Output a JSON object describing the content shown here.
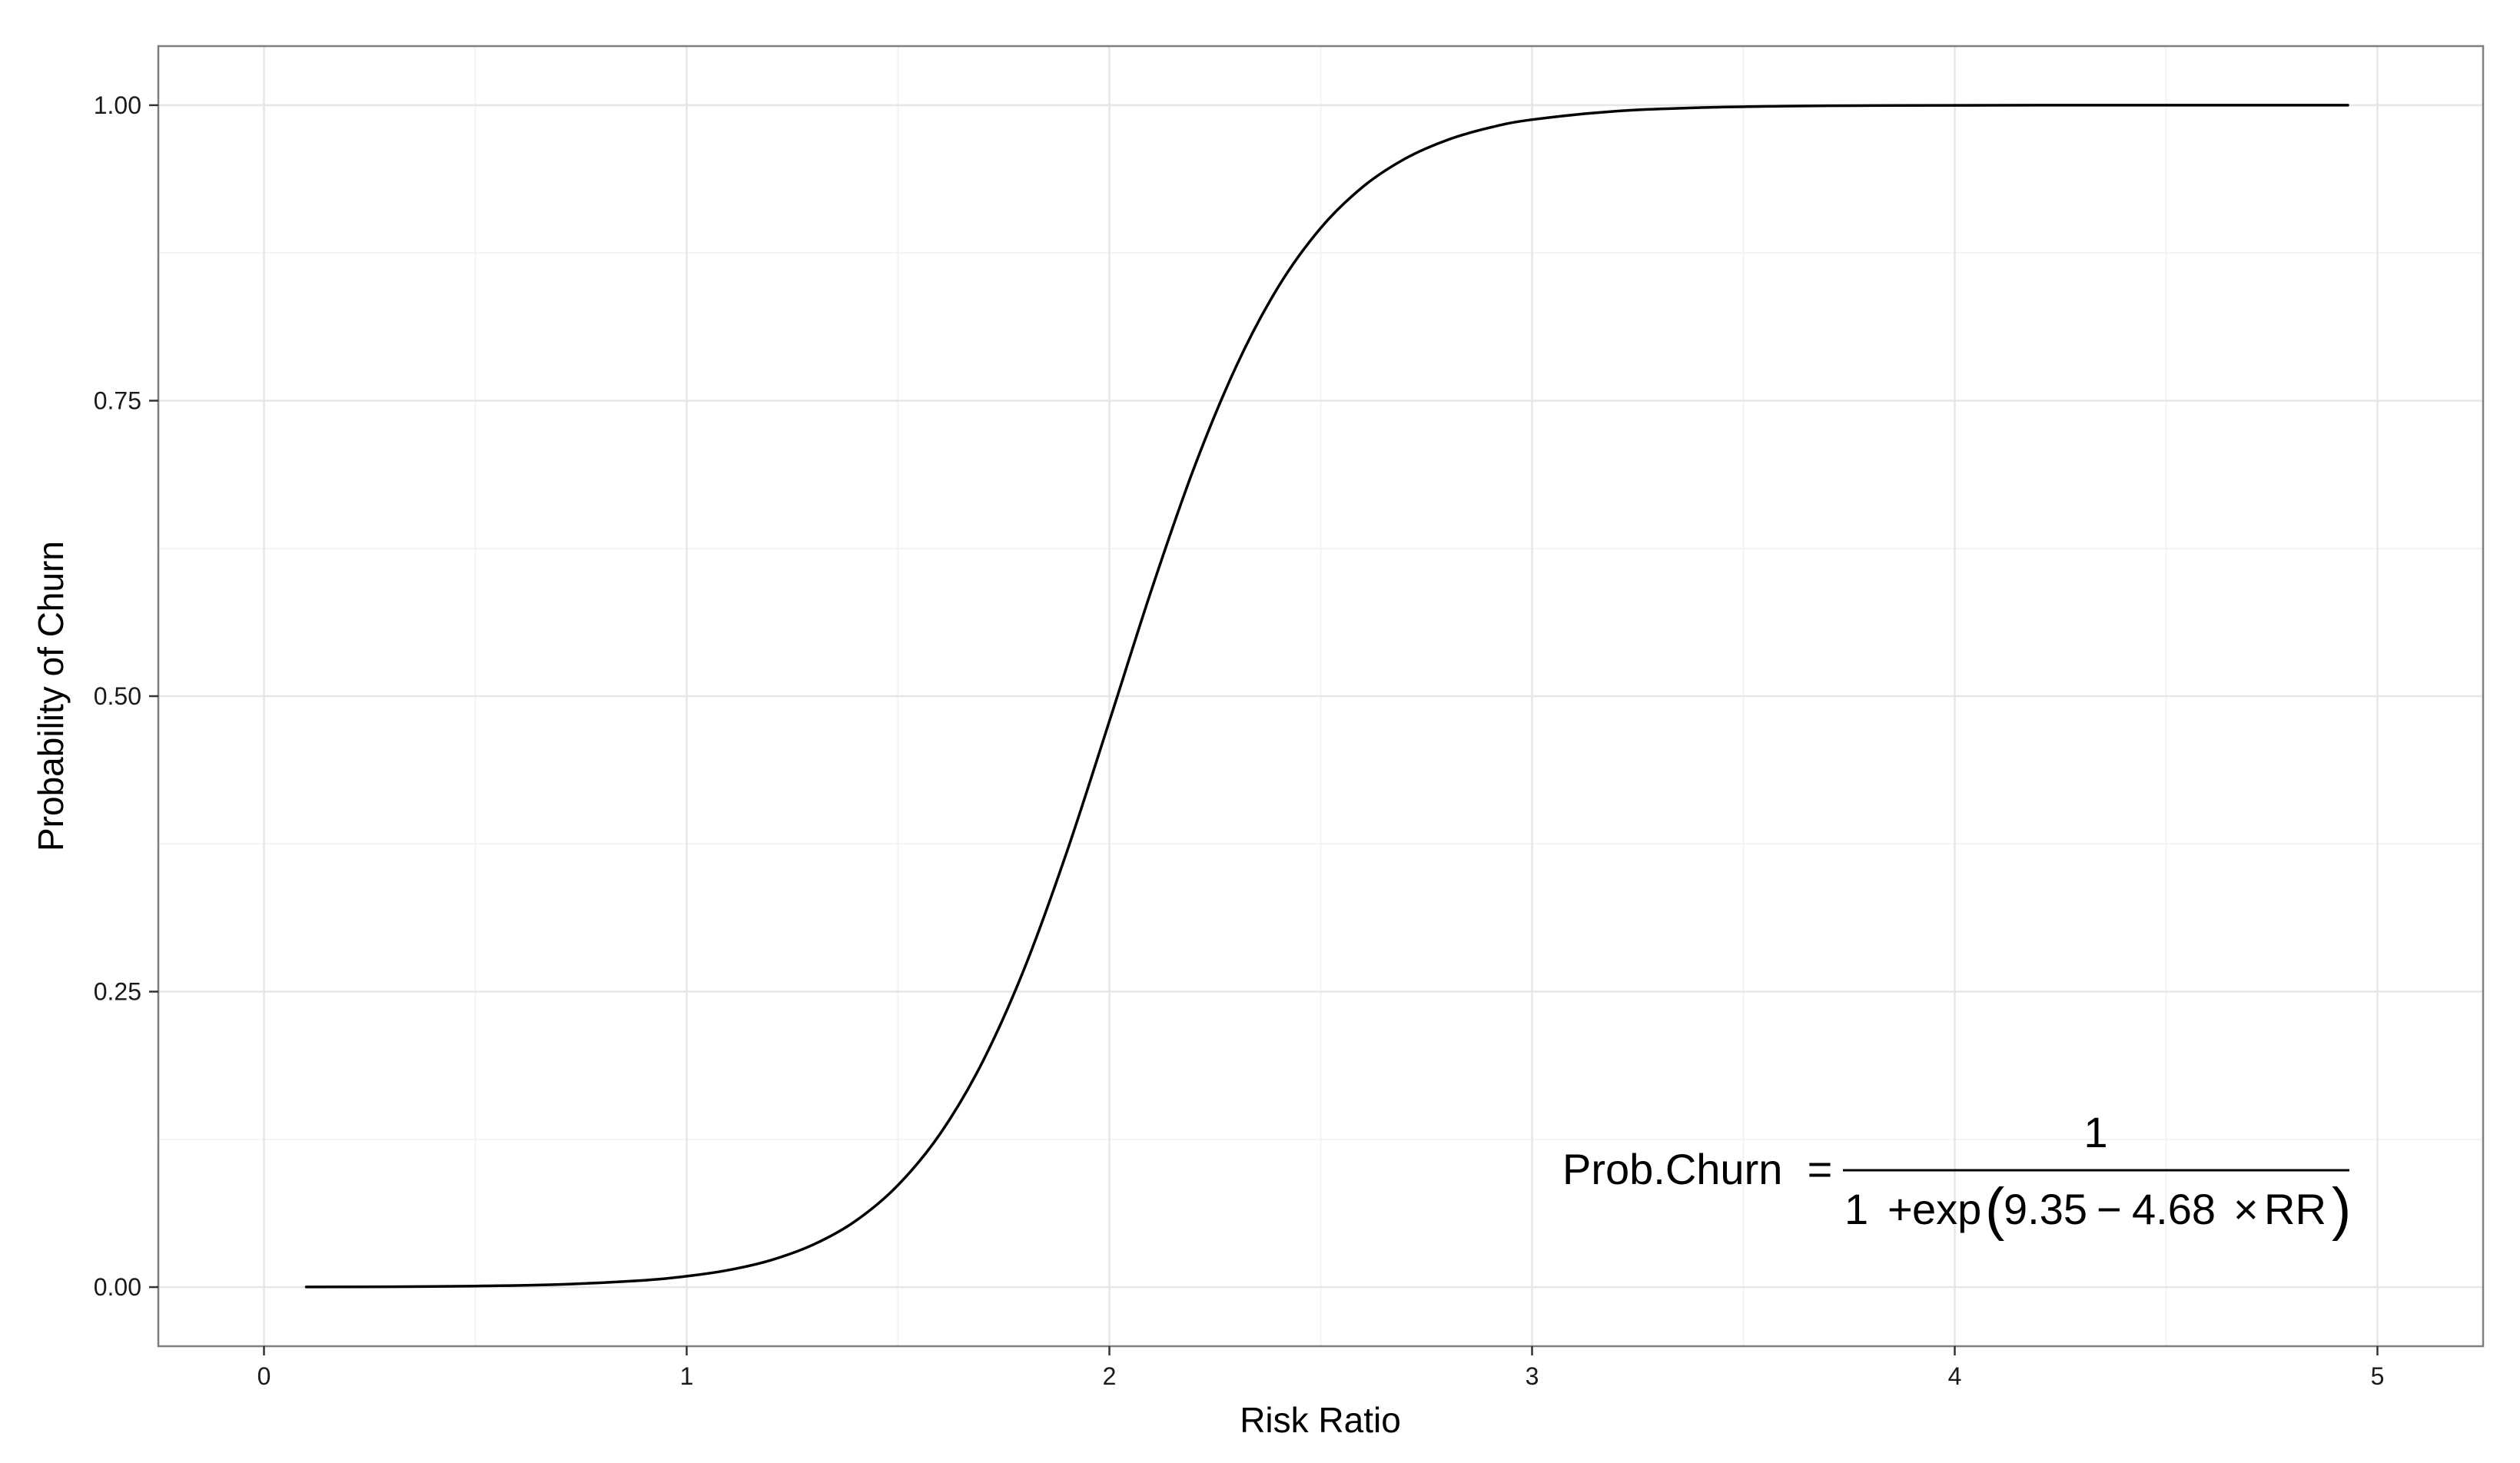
{
  "chart_data": {
    "type": "line",
    "title": "",
    "xlabel": "Risk Ratio",
    "ylabel": "Probability of Churn",
    "xlim": [
      -0.25,
      5.25
    ],
    "ylim": [
      -0.05,
      1.05
    ],
    "x_ticks": [
      0,
      1,
      2,
      3,
      4,
      5
    ],
    "x_tick_labels": [
      "0",
      "1",
      "2",
      "3",
      "4",
      "5"
    ],
    "y_ticks": [
      0,
      0.25,
      0.5,
      0.75,
      1
    ],
    "y_tick_labels": [
      "0.00",
      "0.25",
      "0.50",
      "0.75",
      "1.00"
    ],
    "grid": true,
    "legend": "none",
    "series": [
      {
        "color": "#000000",
        "x": [
          0.1,
          0.3,
          0.5,
          0.7,
          0.9,
          1.0,
          1.1,
          1.2,
          1.3,
          1.4,
          1.5,
          1.6,
          1.7,
          1.8,
          1.9,
          2.0,
          2.1,
          2.2,
          2.3,
          2.4,
          2.5,
          2.6,
          2.7,
          2.8,
          2.9,
          3.0,
          3.2,
          3.4,
          3.6,
          3.8,
          4.0,
          4.3,
          4.6,
          4.93
        ],
        "y": [
          0.0001,
          0.0003,
          0.0009,
          0.0023,
          0.0058,
          0.0092,
          0.0145,
          0.0229,
          0.036,
          0.0561,
          0.0863,
          0.1299,
          0.1906,
          0.2706,
          0.3689,
          0.4788,
          0.5903,
          0.6928,
          0.779,
          0.8465,
          0.8961,
          0.931,
          0.9548,
          0.9706,
          0.981,
          0.9878,
          0.995,
          0.998,
          0.9992,
          0.9997,
          0.9999,
          1.0,
          1.0,
          1.0
        ]
      }
    ],
    "annotation": {
      "lhs": "Prob.Churn",
      "equals": "=",
      "numerator": "1",
      "denominator_one": "1",
      "plus": "+",
      "exp_name": "exp",
      "open_paren": "(",
      "intercept": "9.35",
      "minus": "−",
      "slope": "4.68",
      "times": "×",
      "variable": "RR",
      "close_paren": ")"
    }
  }
}
